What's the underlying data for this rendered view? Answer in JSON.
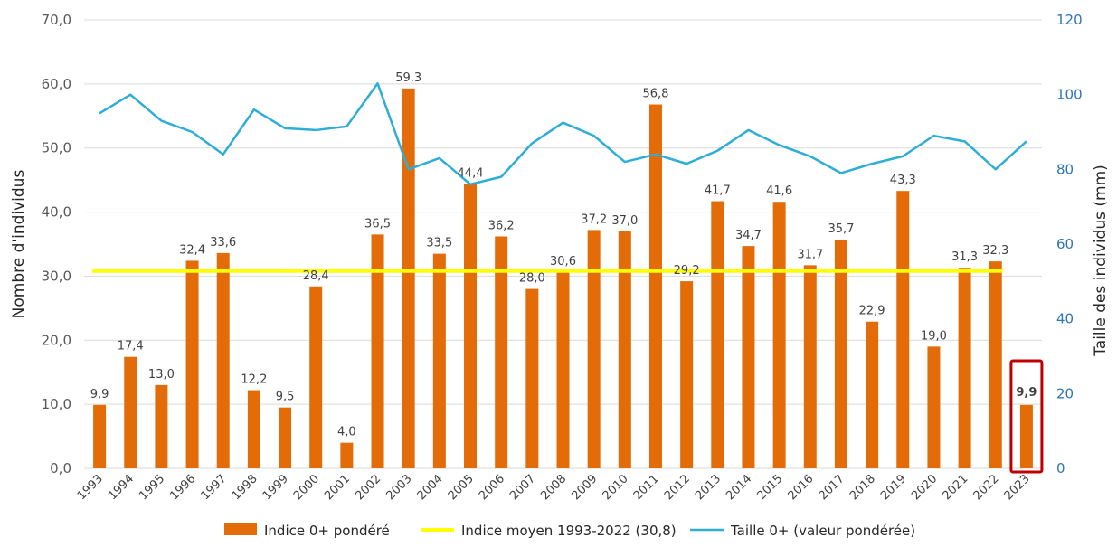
{
  "chart_data": {
    "type": "bar",
    "categories": [
      "1993",
      "1994",
      "1995",
      "1996",
      "1997",
      "1998",
      "1999",
      "2000",
      "2001",
      "2002",
      "2003",
      "2004",
      "2005",
      "2006",
      "2007",
      "2008",
      "2009",
      "2010",
      "2011",
      "2012",
      "2013",
      "2014",
      "2015",
      "2016",
      "2017",
      "2018",
      "2019",
      "2020",
      "2021",
      "2022",
      "2023"
    ],
    "series": [
      {
        "name": "Indice 0+ pondéré",
        "axis": "left",
        "kind": "bar",
        "color": "#e36c09",
        "values": [
          9.9,
          17.4,
          13.0,
          32.4,
          33.6,
          12.2,
          9.5,
          28.4,
          4.0,
          36.5,
          59.3,
          33.5,
          44.4,
          36.2,
          28.0,
          30.6,
          37.2,
          37.0,
          56.8,
          29.2,
          41.7,
          34.7,
          41.6,
          31.7,
          35.7,
          22.9,
          43.3,
          19.0,
          31.3,
          32.3,
          9.9
        ],
        "labels": [
          "9,9",
          "17,4",
          "13,0",
          "32,4",
          "33,6",
          "12,2",
          "9,5",
          "28,4",
          "4,0",
          "36,5",
          "59,3",
          "33,5",
          "44,4",
          "36,2",
          "28,0",
          "30,6",
          "37,2",
          "37,0",
          "56,8",
          "29,2",
          "41,7",
          "34,7",
          "41,6",
          "31,7",
          "35,7",
          "22,9",
          "43,3",
          "19,0",
          "31,3",
          "32,3",
          "9,9"
        ]
      },
      {
        "name": "Indice moyen 1993-2022 (30,8)",
        "axis": "left",
        "kind": "line",
        "color": "#ffff00",
        "value": 30.8
      },
      {
        "name": "Taille 0+ (valeur pondérée)",
        "axis": "right",
        "kind": "line",
        "color": "#2eaed6",
        "values": [
          95,
          100,
          93,
          90,
          84,
          96,
          91,
          90.5,
          91.5,
          103,
          80,
          83,
          76,
          78,
          87,
          92.5,
          89,
          82,
          84,
          81.5,
          85,
          90.5,
          86.5,
          83.5,
          79,
          81.5,
          83.5,
          89,
          87.5,
          80,
          87.5
        ]
      }
    ],
    "highlight": {
      "category": "2023",
      "color": "#c00000"
    },
    "ylabel": "Nombre d'individus",
    "y2label": "Taille des individus (mm)",
    "ylim": [
      0,
      70
    ],
    "y2lim": [
      0,
      120
    ],
    "yticks": [
      "0,0",
      "10,0",
      "20,0",
      "30,0",
      "40,0",
      "50,0",
      "60,0",
      "70,0"
    ],
    "y2ticks": [
      "0",
      "20",
      "40",
      "60",
      "80",
      "100",
      "120"
    ],
    "grid": true,
    "legend_position": "bottom"
  }
}
